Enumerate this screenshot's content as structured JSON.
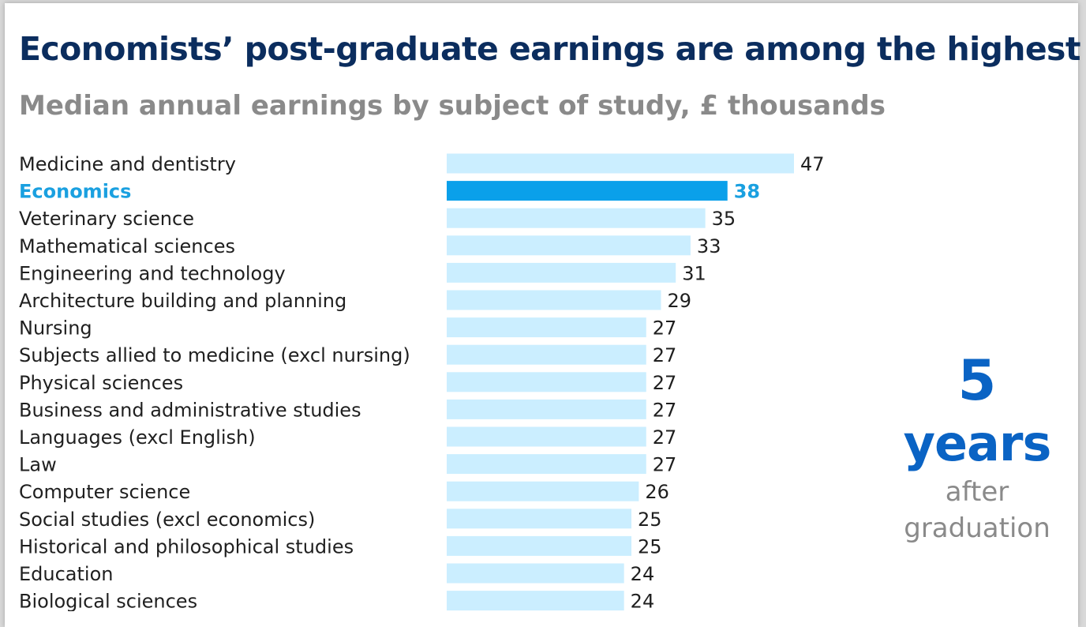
{
  "colors": {
    "title": "#0b2d5e",
    "subtitle": "#8a8a8a",
    "bar": "#cbeeff",
    "bar_highlight": "#0aa0ea",
    "label_highlight": "#1aa0e0",
    "side_accent": "#0a63c4"
  },
  "chart_data": {
    "type": "bar",
    "orientation": "horizontal",
    "title": "Economists’ post-graduate earnings are among the highest",
    "subtitle": "Median annual earnings by subject of study, £ thousands",
    "categories": [
      "Medicine and dentistry",
      "Economics",
      "Veterinary science",
      "Mathematical sciences",
      "Engineering and technology",
      "Architecture building and planning",
      "Nursing",
      "Subjects allied to medicine (excl nursing)",
      "Physical sciences",
      "Business and administrative studies",
      "Languages (excl English)",
      "Law",
      "Computer science",
      "Social studies (excl economics)",
      "Historical and philosophical studies",
      "Education",
      "Biological sciences"
    ],
    "values": [
      47,
      38,
      35,
      33,
      31,
      29,
      27,
      27,
      27,
      27,
      27,
      27,
      26,
      25,
      25,
      24,
      24
    ],
    "highlight": "Economics",
    "xlim": [
      0,
      47
    ],
    "grid": false
  },
  "annotation": {
    "number": "5",
    "unit": "years",
    "line1": "after",
    "line2": "graduation"
  }
}
